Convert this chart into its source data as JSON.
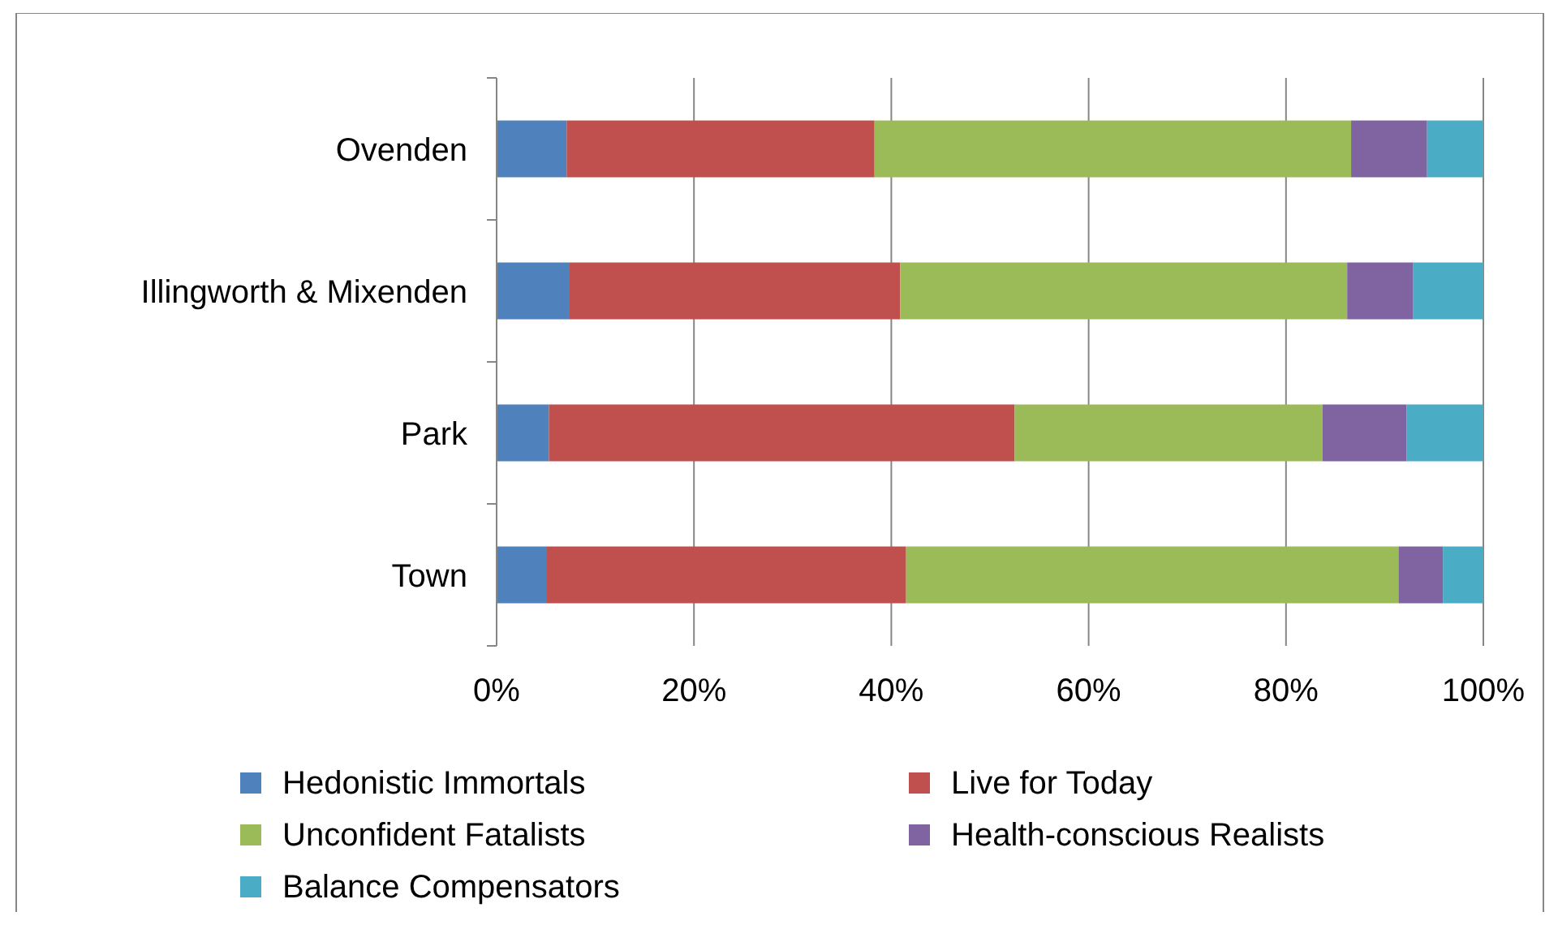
{
  "chart_data": {
    "type": "bar",
    "orientation": "horizontal",
    "stacked": true,
    "categories": [
      "Ovenden",
      "Illingworth & Mixenden",
      "Park",
      "Town"
    ],
    "series": [
      {
        "name": "Hedonistic Immortals",
        "color": "#4f81bd",
        "values": [
          7.1,
          7.4,
          5.3,
          5.1
        ]
      },
      {
        "name": "Live for Today",
        "color": "#c0504d",
        "values": [
          31.2,
          33.5,
          47.2,
          36.4
        ]
      },
      {
        "name": "Unconfident Fatalists",
        "color": "#9bbb59",
        "values": [
          48.3,
          45.3,
          31.2,
          49.9
        ]
      },
      {
        "name": "Health-conscious Realists",
        "color": "#8064a2",
        "values": [
          7.7,
          6.7,
          8.5,
          4.5
        ]
      },
      {
        "name": "Balance Compensators",
        "color": "#4bacc6",
        "values": [
          5.7,
          7.1,
          7.8,
          4.1
        ]
      }
    ],
    "xlim": [
      0,
      100
    ],
    "xticks": [
      {
        "value": 0,
        "label": "0%"
      },
      {
        "value": 20,
        "label": "20%"
      },
      {
        "value": 40,
        "label": "40%"
      },
      {
        "value": 60,
        "label": "60%"
      },
      {
        "value": 80,
        "label": "80%"
      },
      {
        "value": 100,
        "label": "100%"
      }
    ],
    "grid": "x",
    "legend": "bottom"
  }
}
